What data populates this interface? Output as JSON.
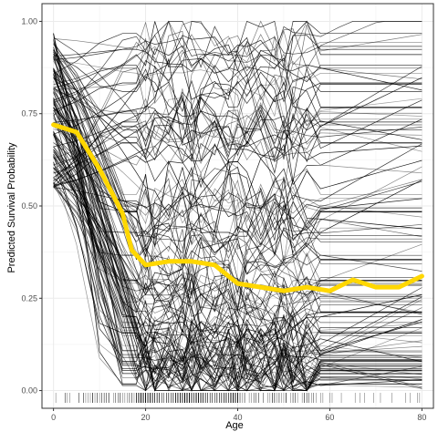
{
  "chart_data": {
    "type": "line",
    "title": "",
    "xlabel": "Age",
    "ylabel": "Predicted Survival Probability",
    "xlim": [
      -2.5,
      82.5
    ],
    "ylim": [
      -0.048,
      1.048
    ],
    "grid": true,
    "legend": "none",
    "x_ticks": [
      0,
      20,
      40,
      60,
      80
    ],
    "y_ticks": [
      0.0,
      0.25,
      0.5,
      0.75,
      1.0
    ],
    "x_tick_labels": [
      "0",
      "20",
      "40",
      "60",
      "80"
    ],
    "y_tick_labels": [
      "0.00",
      "0.25",
      "0.50",
      "0.75",
      "1.00"
    ],
    "x_grid": [
      0,
      20,
      40,
      60,
      80
    ],
    "y_grid": [
      0.0,
      0.25,
      0.5,
      0.75,
      1.0
    ],
    "colors": {
      "ice_lines": "#000000",
      "average": "#FFD700",
      "grid": "#ebebeb",
      "panel_border": "#333333",
      "axis_text": "#4d4d4d"
    },
    "series": [
      {
        "x": [
          0,
          5,
          10,
          15,
          17,
          20,
          25,
          30,
          35,
          40,
          45,
          50,
          55,
          60,
          65,
          70,
          75,
          80
        ],
        "values": [
          0.72,
          0.7,
          0.6,
          0.48,
          0.38,
          0.34,
          0.35,
          0.35,
          0.34,
          0.29,
          0.28,
          0.27,
          0.28,
          0.27,
          0.3,
          0.28,
          0.28,
          0.31
        ]
      }
    ]
  }
}
